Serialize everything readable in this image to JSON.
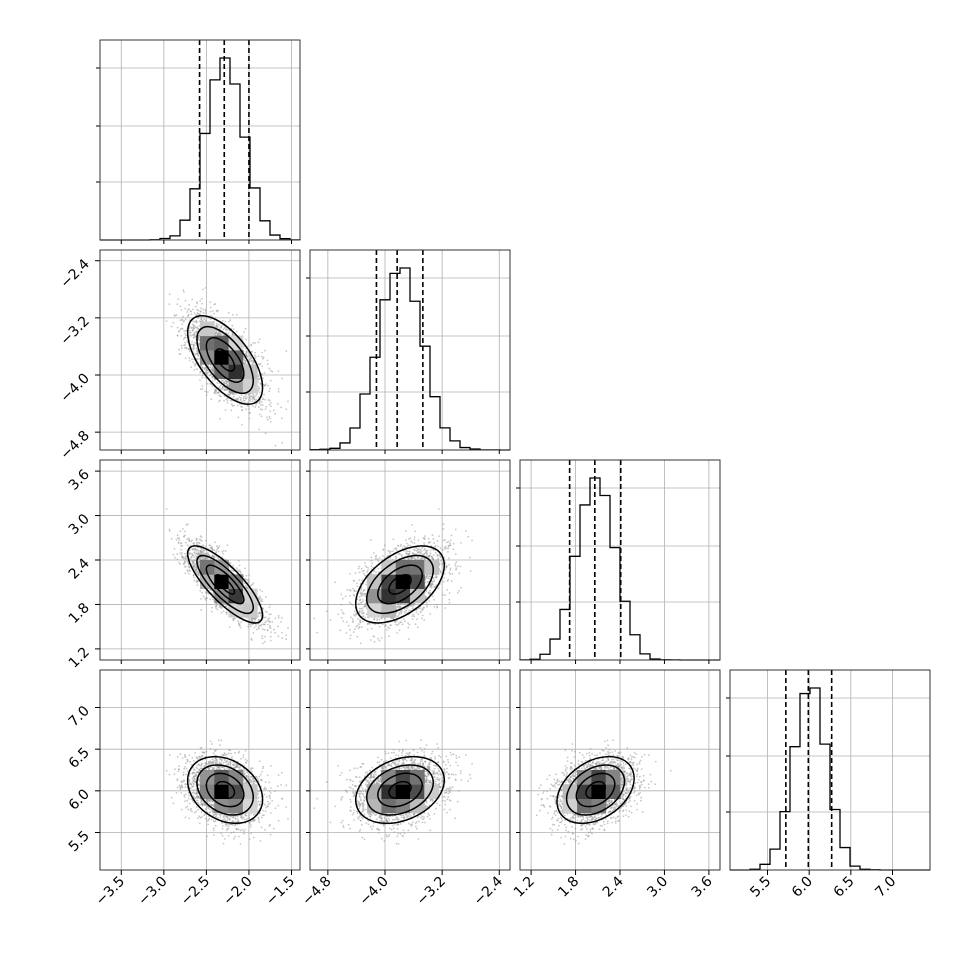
{
  "chart_data": {
    "type": "corner",
    "grid": true,
    "colors": {
      "line": "#000000",
      "grid": "#b0b0b0",
      "scatter": "#9a9a9a",
      "frame": "#333333"
    },
    "parameters": [
      {
        "range": [
          -3.75,
          -1.4
        ],
        "ticks": [
          -3.5,
          -3.0,
          -2.5,
          -2.0,
          -1.5
        ],
        "tick_labels": [
          "−3.5",
          "−3.0",
          "−2.5",
          "−2.0",
          "−1.5"
        ],
        "mean": -2.28,
        "sd": 0.22,
        "quantiles": [
          -2.58,
          -2.29,
          -2.0
        ]
      },
      {
        "range": [
          -5.05,
          -2.25
        ],
        "ticks": [
          -4.8,
          -4.0,
          -3.2,
          -2.4
        ],
        "tick_labels": [
          "−4.8",
          "−4.0",
          "−3.2",
          "−2.4"
        ],
        "mean": -3.79,
        "sd": 0.31,
        "quantiles": [
          -4.12,
          -3.83,
          -3.47
        ]
      },
      {
        "range": [
          1.05,
          3.75
        ],
        "ticks": [
          1.2,
          1.8,
          2.4,
          3.0,
          3.6
        ],
        "tick_labels": [
          "1.2",
          "1.8",
          "2.4",
          "3.0",
          "3.6"
        ],
        "mean": 2.07,
        "sd": 0.26,
        "quantiles": [
          1.72,
          2.06,
          2.41
        ]
      },
      {
        "range": [
          5.05,
          7.45
        ],
        "ticks": [
          5.5,
          6.0,
          6.5,
          7.0
        ],
        "tick_labels": [
          "5.5",
          "6.0",
          "6.5",
          "7.0"
        ],
        "mean": 6.01,
        "sd": 0.2,
        "quantiles": [
          5.72,
          5.99,
          6.27
        ]
      }
    ],
    "correlations": {
      "1-0": -0.62,
      "2-0": -0.8,
      "2-1": 0.5,
      "3-0": -0.28,
      "3-1": 0.3,
      "3-2": 0.35
    }
  }
}
